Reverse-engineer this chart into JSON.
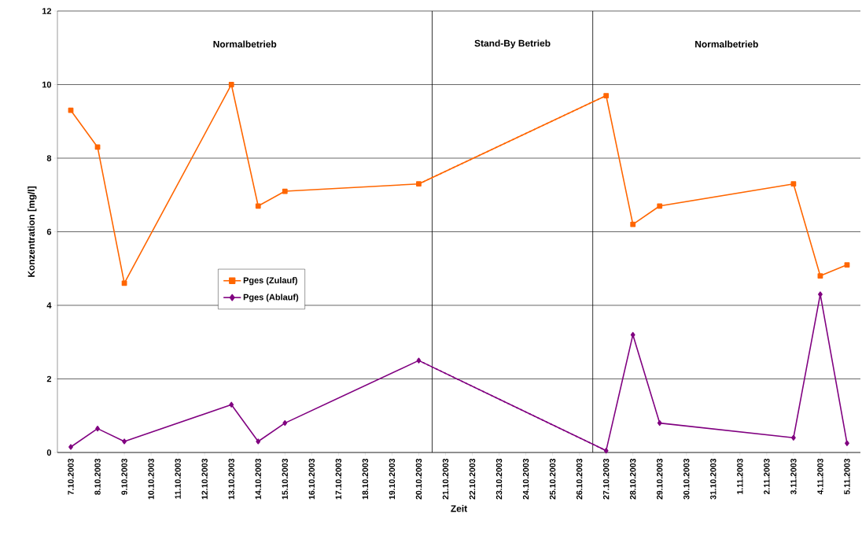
{
  "chart_data": {
    "type": "line",
    "xlabel": "Zeit",
    "ylabel": "Konzentration [mg/l]",
    "xlim": [
      "2003-10-06T12:00",
      "2003-11-05T12:00"
    ],
    "ylim": [
      0,
      12
    ],
    "yticks": [
      0,
      2,
      4,
      6,
      8,
      10,
      12
    ],
    "xticks": [
      {
        "value": "2003-10-07",
        "label": "7.10.2003"
      },
      {
        "value": "2003-10-08",
        "label": "8.10.2003"
      },
      {
        "value": "2003-10-09",
        "label": "9.10.2003"
      },
      {
        "value": "2003-10-10",
        "label": "10.10.2003"
      },
      {
        "value": "2003-10-11",
        "label": "11.10.2003"
      },
      {
        "value": "2003-10-12",
        "label": "12.10.2003"
      },
      {
        "value": "2003-10-13",
        "label": "13.10.2003"
      },
      {
        "value": "2003-10-14",
        "label": "14.10.2003"
      },
      {
        "value": "2003-10-15",
        "label": "15.10.2003"
      },
      {
        "value": "2003-10-16",
        "label": "16.10.2003"
      },
      {
        "value": "2003-10-17",
        "label": "17.10.2003"
      },
      {
        "value": "2003-10-18",
        "label": "18.10.2003"
      },
      {
        "value": "2003-10-19",
        "label": "19.10.2003"
      },
      {
        "value": "2003-10-20",
        "label": "20.10.2003"
      },
      {
        "value": "2003-10-21",
        "label": "21.10.2003"
      },
      {
        "value": "2003-10-22",
        "label": "22.10.2003"
      },
      {
        "value": "2003-10-23",
        "label": "23.10.2003"
      },
      {
        "value": "2003-10-24",
        "label": "24.10.2003"
      },
      {
        "value": "2003-10-25",
        "label": "25.10.2003"
      },
      {
        "value": "2003-10-26",
        "label": "26.10.2003"
      },
      {
        "value": "2003-10-27",
        "label": "27.10.2003"
      },
      {
        "value": "2003-10-28",
        "label": "28.10.2003"
      },
      {
        "value": "2003-10-29",
        "label": "29.10.2003"
      },
      {
        "value": "2003-10-30",
        "label": "30.10.2003"
      },
      {
        "value": "2003-10-31",
        "label": "31.10.2003"
      },
      {
        "value": "2003-11-01",
        "label": "1.11.2003"
      },
      {
        "value": "2003-11-02",
        "label": "2.11.2003"
      },
      {
        "value": "2003-11-03",
        "label": "3.11.2003"
      },
      {
        "value": "2003-11-04",
        "label": "4.11.2003"
      },
      {
        "value": "2003-11-05",
        "label": "5.11.2003"
      }
    ],
    "series": [
      {
        "name": "Pges (Zulauf)",
        "color": "#ff6600",
        "marker": "square",
        "x": [
          "2003-10-07",
          "2003-10-08",
          "2003-10-09",
          "2003-10-13",
          "2003-10-14",
          "2003-10-15",
          "2003-10-20",
          "2003-10-27",
          "2003-10-28",
          "2003-10-29",
          "2003-11-03",
          "2003-11-04",
          "2003-11-05"
        ],
        "values": [
          9.3,
          8.3,
          4.6,
          10.0,
          6.7,
          7.1,
          7.3,
          9.7,
          6.2,
          6.7,
          7.3,
          4.8,
          5.1
        ]
      },
      {
        "name": "Pges (Ablauf)",
        "color": "#800080",
        "marker": "diamond",
        "x": [
          "2003-10-07",
          "2003-10-08",
          "2003-10-09",
          "2003-10-13",
          "2003-10-14",
          "2003-10-15",
          "2003-10-20",
          "2003-10-27",
          "2003-10-28",
          "2003-10-29",
          "2003-11-03",
          "2003-11-04",
          "2003-11-05"
        ],
        "values": [
          0.15,
          0.65,
          0.3,
          1.3,
          0.3,
          0.8,
          2.5,
          0.05,
          3.2,
          0.8,
          0.4,
          4.3,
          0.25
        ]
      },
      {
        "color": "#ff6600",
        "marker": "none",
        "line_style": "dotted",
        "x": [
          "2003-10-20",
          "2003-10-27"
        ],
        "values": [
          7.3,
          9.7
        ]
      },
      {
        "color": "#800080",
        "marker": "none",
        "line_style": "dotted",
        "x": [
          "2003-10-20",
          "2003-10-27"
        ],
        "values": [
          2.5,
          0.05
        ]
      }
    ],
    "ref_lines": [
      {
        "axis": "x",
        "value": "2003-10-20T12:00",
        "color": "#000000"
      },
      {
        "axis": "x",
        "value": "2003-10-26T12:00",
        "color": "#000000"
      }
    ],
    "annotations": [
      "Normalbetrieb",
      "Stand-By Betrieb",
      "Normalbetrieb"
    ],
    "grid": "y",
    "legend": "center left"
  }
}
